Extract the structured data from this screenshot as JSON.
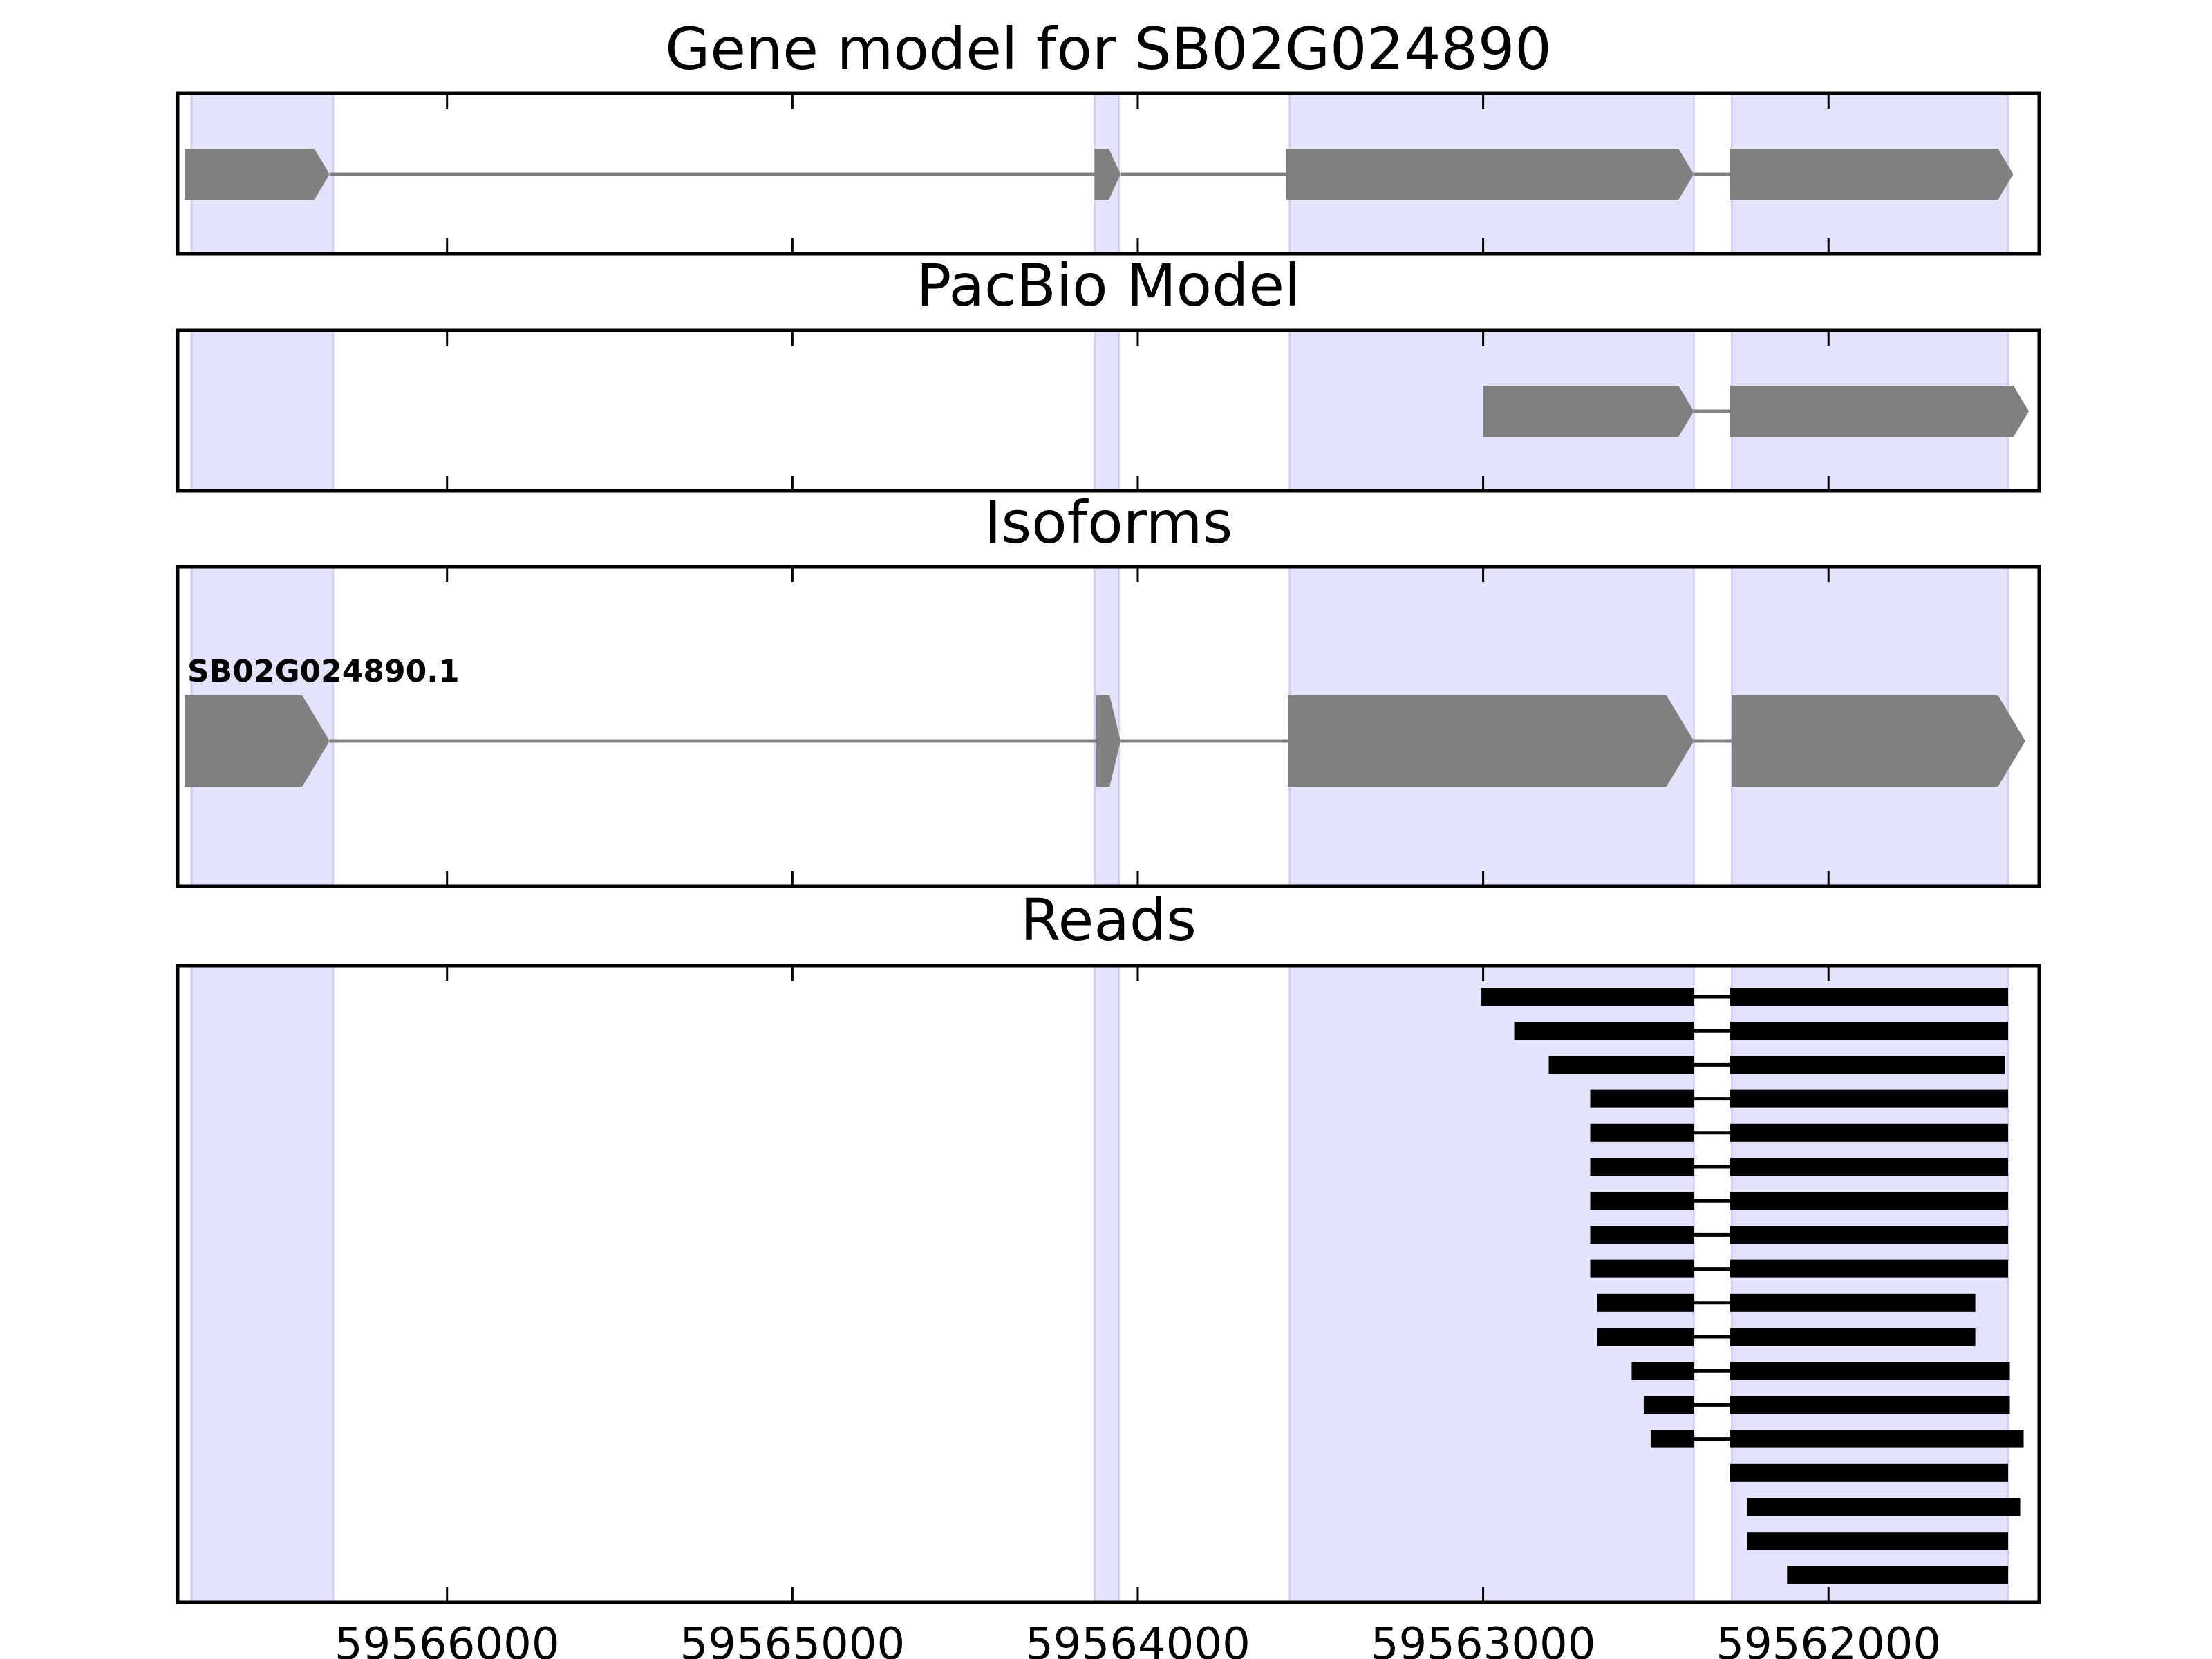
{
  "chart_data": {
    "type": "gene_model",
    "direction": "reverse",
    "xlim": [
      59566780,
      59561390
    ],
    "xticks": [
      59566000,
      59565000,
      59564000,
      59563000,
      59562000
    ],
    "xtick_labels": [
      "59566000",
      "59565000",
      "59564000",
      "59563000",
      "59562000"
    ],
    "highlight_regions": [
      [
        59566740,
        59566330
      ],
      [
        59564125,
        59564055
      ],
      [
        59563560,
        59562390
      ],
      [
        59562280,
        59561480
      ]
    ],
    "panels": [
      {
        "id": "gene-model",
        "title": "Gene model for SB02G024890",
        "tracks": [
          {
            "label": "",
            "exons": [
              [
                59566760,
                59566340
              ],
              [
                59564125,
                59564050
              ],
              [
                59563570,
                59562390
              ],
              [
                59562285,
                59561465
              ]
            ]
          }
        ]
      },
      {
        "id": "pacbio-model",
        "title": "PacBio Model",
        "tracks": [
          {
            "label": "",
            "exons": [
              [
                59563000,
                59562390
              ],
              [
                59562285,
                59561420
              ]
            ]
          }
        ]
      },
      {
        "id": "isoforms",
        "title": "Isoforms",
        "tracks": [
          {
            "label": "SB02G024890.1",
            "exons": [
              [
                59566760,
                59566340
              ],
              [
                59564120,
                59564050
              ],
              [
                59563565,
                59562390
              ],
              [
                59562280,
                59561430
              ]
            ]
          }
        ]
      },
      {
        "id": "reads",
        "title": "Reads",
        "reads": [
          [
            [
              59563005,
              59562390
            ],
            [
              59562285,
              59561480
            ]
          ],
          [
            [
              59562910,
              59562390
            ],
            [
              59562285,
              59561480
            ]
          ],
          [
            [
              59562810,
              59562390
            ],
            [
              59562285,
              59561490
            ]
          ],
          [
            [
              59562690,
              59562390
            ],
            [
              59562285,
              59561480
            ]
          ],
          [
            [
              59562690,
              59562390
            ],
            [
              59562285,
              59561480
            ]
          ],
          [
            [
              59562690,
              59562390
            ],
            [
              59562285,
              59561480
            ]
          ],
          [
            [
              59562690,
              59562390
            ],
            [
              59562285,
              59561480
            ]
          ],
          [
            [
              59562690,
              59562390
            ],
            [
              59562285,
              59561480
            ]
          ],
          [
            [
              59562690,
              59562390
            ],
            [
              59562285,
              59561480
            ]
          ],
          [
            [
              59562670,
              59562390
            ],
            [
              59562285,
              59561575
            ]
          ],
          [
            [
              59562670,
              59562390
            ],
            [
              59562285,
              59561575
            ]
          ],
          [
            [
              59562570,
              59562390
            ],
            [
              59562285,
              59561475
            ]
          ],
          [
            [
              59562535,
              59562390
            ],
            [
              59562285,
              59561475
            ]
          ],
          [
            [
              59562515,
              59562390
            ],
            [
              59562285,
              59561435
            ]
          ],
          [
            [
              59562285,
              59561480
            ]
          ],
          [
            [
              59562235,
              59561445
            ]
          ],
          [
            [
              59562235,
              59561480
            ]
          ],
          [
            [
              59562120,
              59561480
            ]
          ]
        ]
      }
    ]
  }
}
